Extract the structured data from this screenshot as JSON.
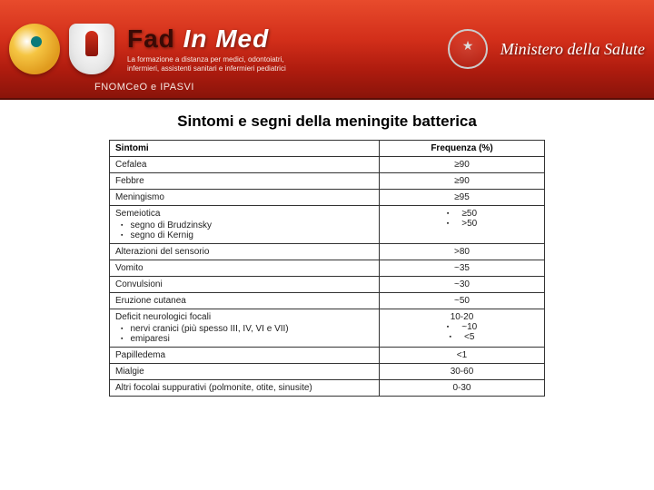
{
  "header": {
    "brand_dark": "Fad",
    "brand_white_1": "In",
    "brand_white_2": "Med",
    "tagline_line1": "La formazione a distanza per medici, odontoiatri,",
    "tagline_line2": "infermieri, assistenti sanitari e infermieri pediatrici",
    "org_label": "FNOMCeO e IPASVI",
    "ministry": "Ministero della Salute"
  },
  "title": "Sintomi e segni della meningite batterica",
  "table": {
    "col_symptom": "Sintomi",
    "col_freq": "Frequenza (%)",
    "rows": [
      {
        "symptom": "Cefalea",
        "freq": "≥90"
      },
      {
        "symptom": "Febbre",
        "freq": "≥90"
      },
      {
        "symptom": "Meningismo",
        "freq": "≥95"
      },
      {
        "symptom": "Semeiotica",
        "sub": [
          "segno di Brudzinsky",
          "segno di Kernig"
        ],
        "freq_sub": [
          "≥50",
          ">50"
        ]
      },
      {
        "symptom": "Alterazioni del sensorio",
        "freq": ">80"
      },
      {
        "symptom": "Vomito",
        "freq": "~35"
      },
      {
        "symptom": "Convulsioni",
        "freq": "~30"
      },
      {
        "symptom": "Eruzione cutanea",
        "freq": "~50"
      },
      {
        "symptom": "Deficit neurologici focali",
        "freq": "10-20",
        "sub": [
          "nervi cranici (più spesso III, IV, VI e VII)",
          "emiparesi"
        ],
        "freq_sub": [
          "~10",
          "<5"
        ]
      },
      {
        "symptom": "Papilledema",
        "freq": "<1"
      },
      {
        "symptom": "Mialgie",
        "freq": "30-60"
      },
      {
        "symptom": "Altri focolai suppurativi (polmonite, otite, sinusite)",
        "freq": "0-30"
      }
    ]
  },
  "style": {
    "header_gradient": [
      "#e84b2c",
      "#d32f1a",
      "#b01c0f",
      "#8a140a"
    ],
    "page_bg": "#ffffff",
    "table_border": "#333333",
    "title_fontsize": 17,
    "table_fontsize": 10
  }
}
